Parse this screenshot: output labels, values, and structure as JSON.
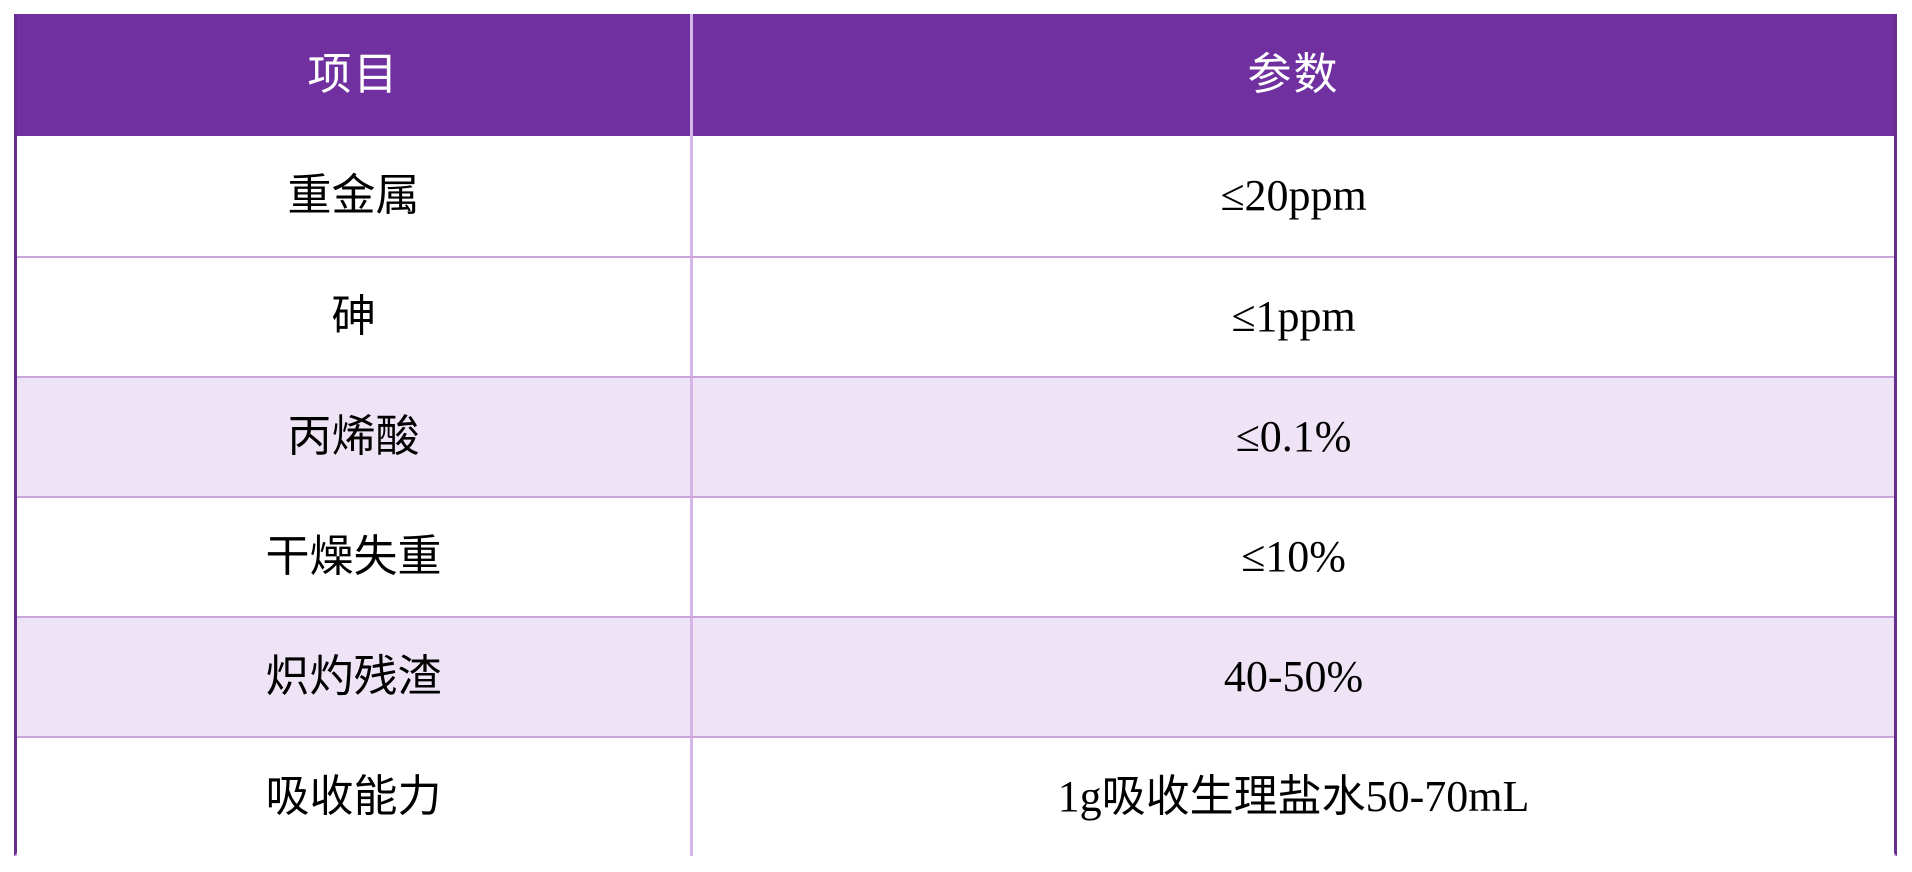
{
  "page": {
    "background": "#FFFFFF"
  },
  "table": {
    "headers": [
      {
        "label": "项目"
      },
      {
        "label": "参数"
      }
    ],
    "rows": [
      {
        "item": "重金属",
        "value": "≤20ppm",
        "shaded": false
      },
      {
        "item": "砷",
        "value": "≤1ppm",
        "shaded": false
      },
      {
        "item": "丙烯酸",
        "value": "≤0.1%",
        "shaded": true
      },
      {
        "item": "干燥失重",
        "value": "≤10%",
        "shaded": false
      },
      {
        "item": "炽灼残渣",
        "value": "40-50%",
        "shaded": true
      },
      {
        "item": "吸收能力",
        "value": "1g吸收生理盐水50-70mL",
        "shaded": false
      }
    ],
    "colors": {
      "header_bg": "#7030A0",
      "header_text": "#FFFFFF",
      "row_bg": "#FFFFFF",
      "shaded_row_bg": "#EEE4F6",
      "side_border": "#662D91",
      "row_border": "#C9A5DC",
      "column_divider": "#D5B6E8",
      "cell_text": "#000000"
    }
  }
}
